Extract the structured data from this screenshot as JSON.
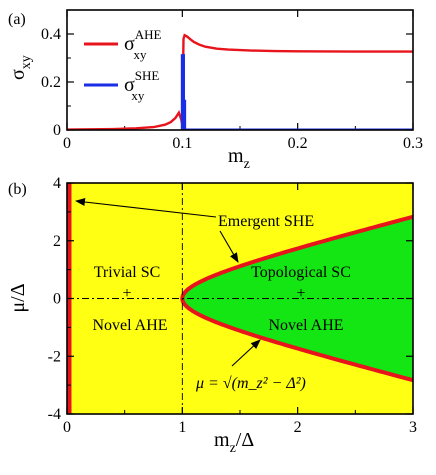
{
  "chart_data": [
    {
      "panel_label": "(a)",
      "type": "line",
      "xlabel": "m",
      "xlabel_sub": "z",
      "ylabel": "σ",
      "ylabel_sub": "xy",
      "xlim": [
        0,
        0.3
      ],
      "ylim": [
        0,
        0.5
      ],
      "xticks": [
        "0",
        "0.1",
        "0.2",
        "0.3"
      ],
      "yticks": [
        "0",
        "0.2",
        "0.4"
      ],
      "legend_position": "top-left",
      "series": [
        {
          "name": "σ",
          "name_sup": "AHE",
          "name_sub": "xy",
          "color": "#e8141b",
          "x": [
            0,
            0.02,
            0.04,
            0.06,
            0.075,
            0.085,
            0.09,
            0.094,
            0.097,
            0.099,
            0.1,
            0.1005,
            0.101,
            0.102,
            0.104,
            0.107,
            0.11,
            0.115,
            0.12,
            0.13,
            0.14,
            0.16,
            0.18,
            0.2,
            0.25,
            0.3
          ],
          "y": [
            0.002,
            0.003,
            0.004,
            0.007,
            0.012,
            0.022,
            0.033,
            0.05,
            0.072,
            0.045,
            0.02,
            0.2,
            0.38,
            0.395,
            0.39,
            0.378,
            0.367,
            0.355,
            0.347,
            0.339,
            0.335,
            0.331,
            0.329,
            0.328,
            0.327,
            0.327
          ]
        },
        {
          "name": "σ",
          "name_sup": "SHE",
          "name_sub": "xy",
          "color": "#1a2ee6",
          "x": [
            0.1,
            0.1,
            0.101,
            0.101,
            0.102,
            0.102,
            0.3
          ],
          "y": [
            0,
            0.31,
            0.31,
            0.12,
            0.12,
            0,
            0
          ]
        }
      ]
    },
    {
      "panel_label": "(b)",
      "type": "area",
      "xlabel": "m",
      "xlabel_sub": "z",
      "xlabel_tail": "/Δ",
      "ylabel": "μ/Δ",
      "xlim": [
        0,
        3
      ],
      "ylim": [
        -4,
        4
      ],
      "xticks": [
        "0",
        "1",
        "2",
        "3"
      ],
      "yticks": [
        "-4",
        "-2",
        "0",
        "2",
        "4"
      ],
      "region_colors": {
        "trivial": "#ffff14",
        "topological": "#14e614",
        "boundary": "#e8141b"
      },
      "annotations": {
        "trivial_sc": "Trivial SC",
        "trivial_plus": "+",
        "trivial_ahe": "Novel AHE",
        "topological_sc": "Topological SC",
        "topological_plus": "+",
        "topological_ahe": "Novel AHE",
        "emergent_she": "Emergent SHE",
        "boundary_formula": "μ = √(m_z² − Δ²)"
      }
    }
  ]
}
